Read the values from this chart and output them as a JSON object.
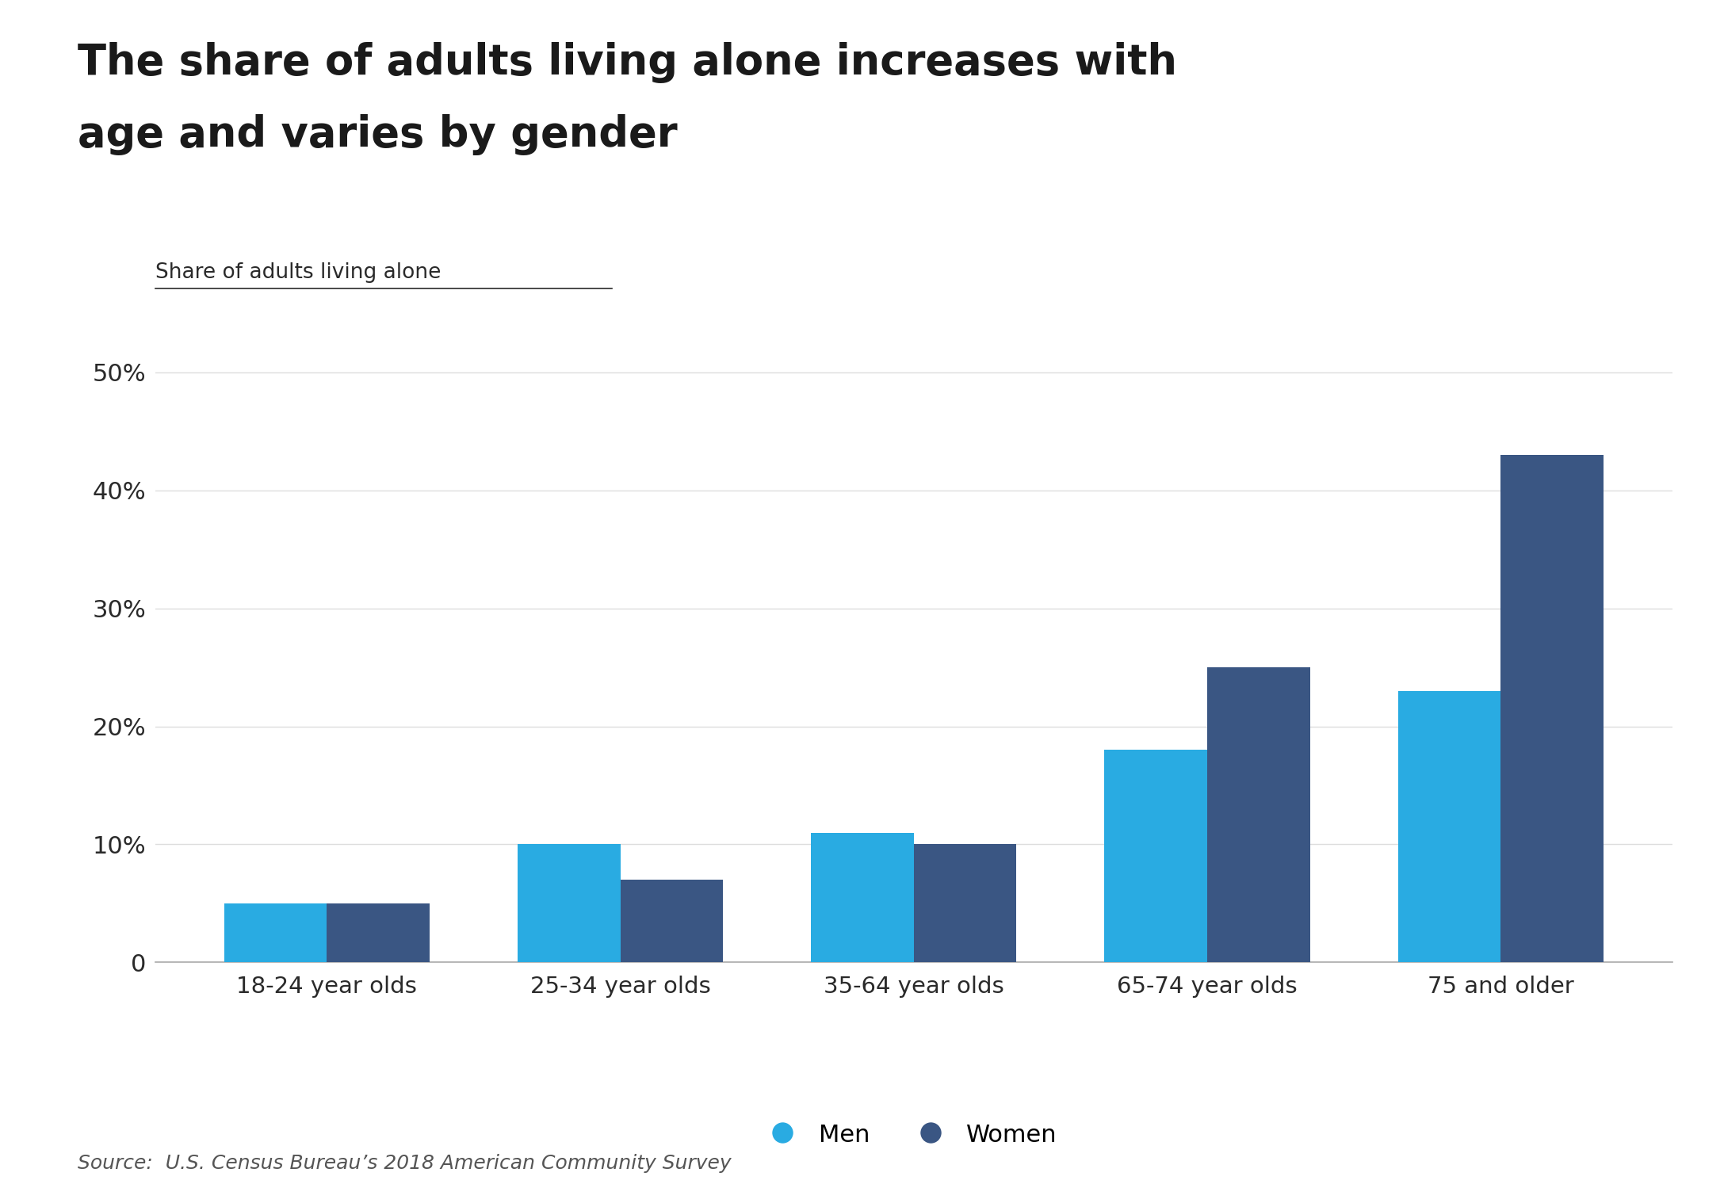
{
  "title_line1": "The share of adults living alone increases with",
  "title_line2": "age and varies by gender",
  "ylabel": "Share of adults living alone",
  "source": "Source:  U.S. Census Bureau’s 2018 American Community Survey",
  "categories": [
    "18-24 year olds",
    "25-34 year olds",
    "35-64 year olds",
    "65-74 year olds",
    "75 and older"
  ],
  "men_values": [
    5,
    10,
    11,
    18,
    23
  ],
  "women_values": [
    5,
    7,
    10,
    25,
    43
  ],
  "men_color": "#29ABE2",
  "women_color": "#3A5683",
  "background_color": "#FFFFFF",
  "yticks": [
    0,
    10,
    20,
    30,
    40,
    50
  ],
  "ylim": [
    0,
    53
  ],
  "bar_width": 0.35,
  "title_fontsize": 38,
  "tick_fontsize": 22,
  "ylabel_fontsize": 19,
  "legend_fontsize": 22,
  "source_fontsize": 18,
  "category_fontsize": 21
}
